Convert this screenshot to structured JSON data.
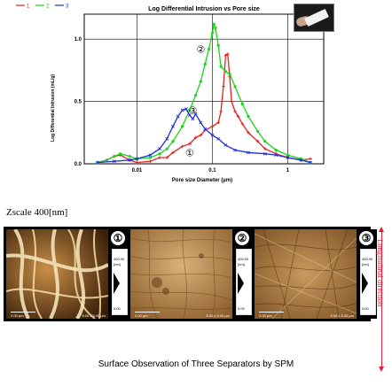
{
  "chart_data": {
    "type": "line",
    "title": "Log Differential Intrusion vs Pore size",
    "xlabel": "Pore size Diameter (µm)",
    "ylabel": "Log Differential Intrusion (mL/g)",
    "x_scale": "log",
    "xlim": [
      0.002,
      3
    ],
    "ylim": [
      0,
      1.2
    ],
    "x_ticks": [
      {
        "value": 0.01,
        "label": "0.01"
      },
      {
        "value": 0.1,
        "label": "0.1"
      },
      {
        "value": 1,
        "label": "1"
      }
    ],
    "y_ticks": [
      {
        "value": 0,
        "label": "0.0"
      },
      {
        "value": 0.5,
        "label": "0.5"
      },
      {
        "value": 1.0,
        "label": "1.0"
      }
    ],
    "grid": true,
    "legend_position": "top-left",
    "series": [
      {
        "name": "1",
        "color": "#e8221b",
        "marker": "+",
        "points": [
          [
            0.003,
            0.01
          ],
          [
            0.004,
            0.03
          ],
          [
            0.005,
            0.06
          ],
          [
            0.006,
            0.07
          ],
          [
            0.008,
            0.03
          ],
          [
            0.01,
            0.01
          ],
          [
            0.015,
            0.02
          ],
          [
            0.02,
            0.05
          ],
          [
            0.025,
            0.05
          ],
          [
            0.03,
            0.09
          ],
          [
            0.04,
            0.14
          ],
          [
            0.05,
            0.16
          ],
          [
            0.06,
            0.21
          ],
          [
            0.07,
            0.23
          ],
          [
            0.08,
            0.27
          ],
          [
            0.1,
            0.3
          ],
          [
            0.12,
            0.33
          ],
          [
            0.13,
            0.42
          ],
          [
            0.14,
            0.62
          ],
          [
            0.15,
            0.87
          ],
          [
            0.16,
            0.88
          ],
          [
            0.17,
            0.7
          ],
          [
            0.18,
            0.5
          ],
          [
            0.2,
            0.42
          ],
          [
            0.22,
            0.38
          ],
          [
            0.25,
            0.32
          ],
          [
            0.3,
            0.25
          ],
          [
            0.4,
            0.18
          ],
          [
            0.5,
            0.12
          ],
          [
            0.7,
            0.08
          ],
          [
            1.0,
            0.05
          ],
          [
            1.5,
            0.03
          ],
          [
            2.0,
            0.04
          ]
        ]
      },
      {
        "name": "2",
        "color": "#1fd21f",
        "marker": "o",
        "points": [
          [
            0.003,
            0.01
          ],
          [
            0.004,
            0.03
          ],
          [
            0.005,
            0.06
          ],
          [
            0.006,
            0.08
          ],
          [
            0.008,
            0.06
          ],
          [
            0.01,
            0.04
          ],
          [
            0.015,
            0.05
          ],
          [
            0.02,
            0.08
          ],
          [
            0.025,
            0.12
          ],
          [
            0.03,
            0.18
          ],
          [
            0.04,
            0.3
          ],
          [
            0.05,
            0.43
          ],
          [
            0.06,
            0.55
          ],
          [
            0.07,
            0.66
          ],
          [
            0.08,
            0.8
          ],
          [
            0.09,
            0.92
          ],
          [
            0.1,
            1.05
          ],
          [
            0.105,
            1.12
          ],
          [
            0.11,
            1.09
          ],
          [
            0.12,
            0.95
          ],
          [
            0.13,
            0.78
          ],
          [
            0.15,
            0.74
          ],
          [
            0.17,
            0.72
          ],
          [
            0.2,
            0.62
          ],
          [
            0.25,
            0.48
          ],
          [
            0.3,
            0.38
          ],
          [
            0.4,
            0.26
          ],
          [
            0.5,
            0.18
          ],
          [
            0.7,
            0.11
          ],
          [
            1.0,
            0.07
          ],
          [
            1.5,
            0.04
          ],
          [
            2.0,
            0.01
          ]
        ]
      },
      {
        "name": "3",
        "color": "#1f2fe0",
        "marker": "x",
        "points": [
          [
            0.003,
            0.01
          ],
          [
            0.005,
            0.02
          ],
          [
            0.008,
            0.03
          ],
          [
            0.01,
            0.04
          ],
          [
            0.015,
            0.07
          ],
          [
            0.02,
            0.12
          ],
          [
            0.025,
            0.2
          ],
          [
            0.03,
            0.3
          ],
          [
            0.035,
            0.38
          ],
          [
            0.04,
            0.43
          ],
          [
            0.045,
            0.44
          ],
          [
            0.05,
            0.39
          ],
          [
            0.055,
            0.36
          ],
          [
            0.06,
            0.4
          ],
          [
            0.07,
            0.33
          ],
          [
            0.08,
            0.28
          ],
          [
            0.1,
            0.23
          ],
          [
            0.12,
            0.2
          ],
          [
            0.15,
            0.15
          ],
          [
            0.2,
            0.11
          ],
          [
            0.3,
            0.09
          ],
          [
            0.5,
            0.08
          ],
          [
            0.7,
            0.07
          ],
          [
            1.0,
            0.05
          ],
          [
            1.5,
            0.03
          ],
          [
            2.0,
            0.01
          ]
        ]
      }
    ],
    "annotations": [
      {
        "label": "②",
        "x": 0.07,
        "y": 0.92
      },
      {
        "label": "③",
        "x": 0.055,
        "y": 0.43
      },
      {
        "label": "①",
        "x": 0.05,
        "y": 0.09
      }
    ]
  },
  "zscale_label": "Zscale 400[nm]",
  "panels": [
    {
      "number": "①",
      "scale_label": "2.00 µm",
      "size_label": "5.00 x 5.00 µm",
      "cbar_top": "400.00",
      "cbar_unit": "[nm]",
      "cbar_bottom": "0.00"
    },
    {
      "number": "②",
      "scale_label": "2.00 µm",
      "size_label": "5.00 x 5.00 µm",
      "cbar_top": "400.00",
      "cbar_unit": "[nm]",
      "cbar_bottom": "0.00"
    },
    {
      "number": "③",
      "scale_label": "2.00 µm",
      "size_label": "5.00 x 5.00 µm",
      "cbar_top": "400.00",
      "cbar_unit": "[nm]",
      "cbar_bottom": "0.00"
    }
  ],
  "side_label": "Longitudinal direction",
  "caption": "Surface Observation of Three Separators by SPM",
  "colors": {
    "accent_red": "#e0203a"
  }
}
